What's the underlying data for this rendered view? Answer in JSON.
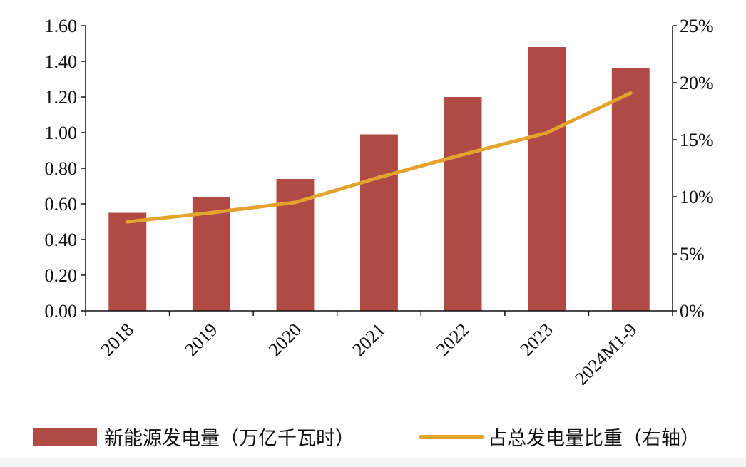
{
  "chart_data": {
    "type": "bar",
    "categories": [
      "2018",
      "2019",
      "2020",
      "2021",
      "2022",
      "2023",
      "2024M1-9"
    ],
    "series": [
      {
        "name": "新能源发电量（万亿千瓦时）",
        "type": "bar",
        "axis": "left",
        "color": "#b04a45",
        "values": [
          0.55,
          0.64,
          0.74,
          0.99,
          1.2,
          1.48,
          1.36
        ]
      },
      {
        "name": "占总发电量比重（右轴）",
        "type": "line",
        "axis": "right",
        "color": "#e3a32c",
        "values": [
          7.8,
          8.6,
          9.5,
          11.7,
          13.7,
          15.6,
          19.1
        ]
      }
    ],
    "y_left": {
      "min": 0,
      "max": 1.6,
      "ticks": [
        "0.00",
        "0.20",
        "0.40",
        "0.60",
        "0.80",
        "1.00",
        "1.20",
        "1.40",
        "1.60"
      ]
    },
    "y_right": {
      "min": 0,
      "max": 25,
      "ticks": [
        "0%",
        "5%",
        "10%",
        "15%",
        "20%",
        "25%"
      ]
    },
    "grid": false,
    "legend": "bottom"
  }
}
